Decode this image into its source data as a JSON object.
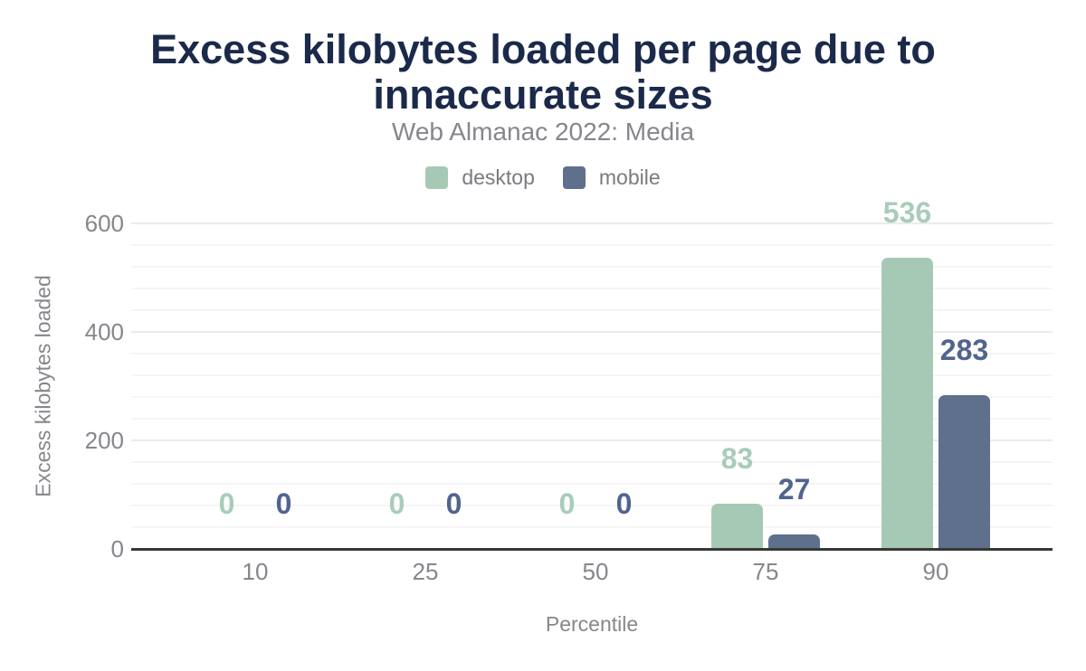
{
  "chart_data": {
    "type": "bar",
    "title": "Excess kilobytes loaded per page due to innaccurate sizes",
    "subtitle": "Web Almanac 2022: Media",
    "xlabel": "Percentile",
    "ylabel": "Excess kilobytes loaded",
    "categories": [
      "10",
      "25",
      "50",
      "75",
      "90"
    ],
    "series": [
      {
        "name": "desktop",
        "color": "#a6c9b6",
        "label_color": "#a9ccba",
        "values": [
          0,
          0,
          0,
          83,
          536
        ]
      },
      {
        "name": "mobile",
        "color": "#5e708c",
        "label_color": "#51648e",
        "values": [
          0,
          0,
          0,
          27,
          283
        ]
      }
    ],
    "ylim": [
      0,
      600
    ],
    "yticks": [
      0,
      200,
      400,
      600
    ],
    "minor_grid_step": 40,
    "grid": "horizontal",
    "legend_position": "top",
    "data_labels": "above bars, colored per series"
  },
  "colors": {
    "title": "#1b2a4a",
    "subtitle": "#85878c",
    "axis_text": "#85878c",
    "legend_text": "#797b80",
    "desktop_bar": "#a6c9b6",
    "mobile_bar": "#5e708c",
    "desktop_label": "#a9ccba",
    "mobile_label": "#51648e",
    "axis_line": "#383838",
    "grid_major": "#ebebeb",
    "grid_minor": "#f5f5f5",
    "background": "#ffffff"
  }
}
